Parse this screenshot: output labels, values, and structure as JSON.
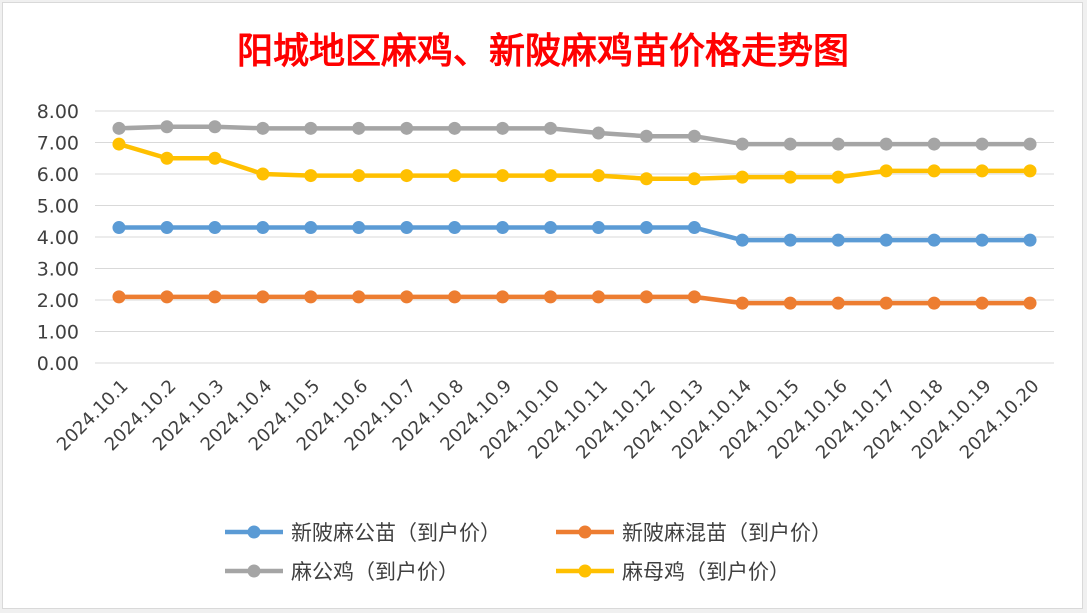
{
  "chart_data": {
    "type": "line",
    "title": "阳城地区麻鸡、新陂麻鸡苗价格走势图",
    "title_color": "#ff0000",
    "categories": [
      "2024.10.1",
      "2024.10.2",
      "2024.10.3",
      "2024.10.4",
      "2024.10.5",
      "2024.10.6",
      "2024.10.7",
      "2024.10.8",
      "2024.10.9",
      "2024.10.10",
      "2024.10.11",
      "2024.10.12",
      "2024.10.13",
      "2024.10.14",
      "2024.10.15",
      "2024.10.16",
      "2024.10.17",
      "2024.10.18",
      "2024.10.19",
      "2024.10.20"
    ],
    "yticks": [
      "0.00",
      "1.00",
      "2.00",
      "3.00",
      "4.00",
      "5.00",
      "6.00",
      "7.00",
      "8.00"
    ],
    "ylim": [
      0,
      8
    ],
    "grid": true,
    "legend_position": "bottom",
    "series": [
      {
        "name": "新陂麻公苗（到户价）",
        "color": "#5b9bd5",
        "values": [
          4.3,
          4.3,
          4.3,
          4.3,
          4.3,
          4.3,
          4.3,
          4.3,
          4.3,
          4.3,
          4.3,
          4.3,
          4.3,
          3.9,
          3.9,
          3.9,
          3.9,
          3.9,
          3.9,
          3.9
        ]
      },
      {
        "name": "新陂麻混苗（到户价）",
        "color": "#ed7d31",
        "values": [
          2.1,
          2.1,
          2.1,
          2.1,
          2.1,
          2.1,
          2.1,
          2.1,
          2.1,
          2.1,
          2.1,
          2.1,
          2.1,
          1.9,
          1.9,
          1.9,
          1.9,
          1.9,
          1.9,
          1.9
        ]
      },
      {
        "name": "麻公鸡（到户价）",
        "color": "#a5a5a5",
        "values": [
          7.45,
          7.5,
          7.5,
          7.45,
          7.45,
          7.45,
          7.45,
          7.45,
          7.45,
          7.45,
          7.3,
          7.2,
          7.2,
          6.95,
          6.95,
          6.95,
          6.95,
          6.95,
          6.95,
          6.95
        ]
      },
      {
        "name": "麻母鸡（到户价）",
        "color": "#ffc000",
        "values": [
          6.95,
          6.5,
          6.5,
          6.0,
          5.95,
          5.95,
          5.95,
          5.95,
          5.95,
          5.95,
          5.95,
          5.85,
          5.85,
          5.9,
          5.9,
          5.9,
          6.1,
          6.1,
          6.1,
          6.1
        ]
      }
    ]
  }
}
